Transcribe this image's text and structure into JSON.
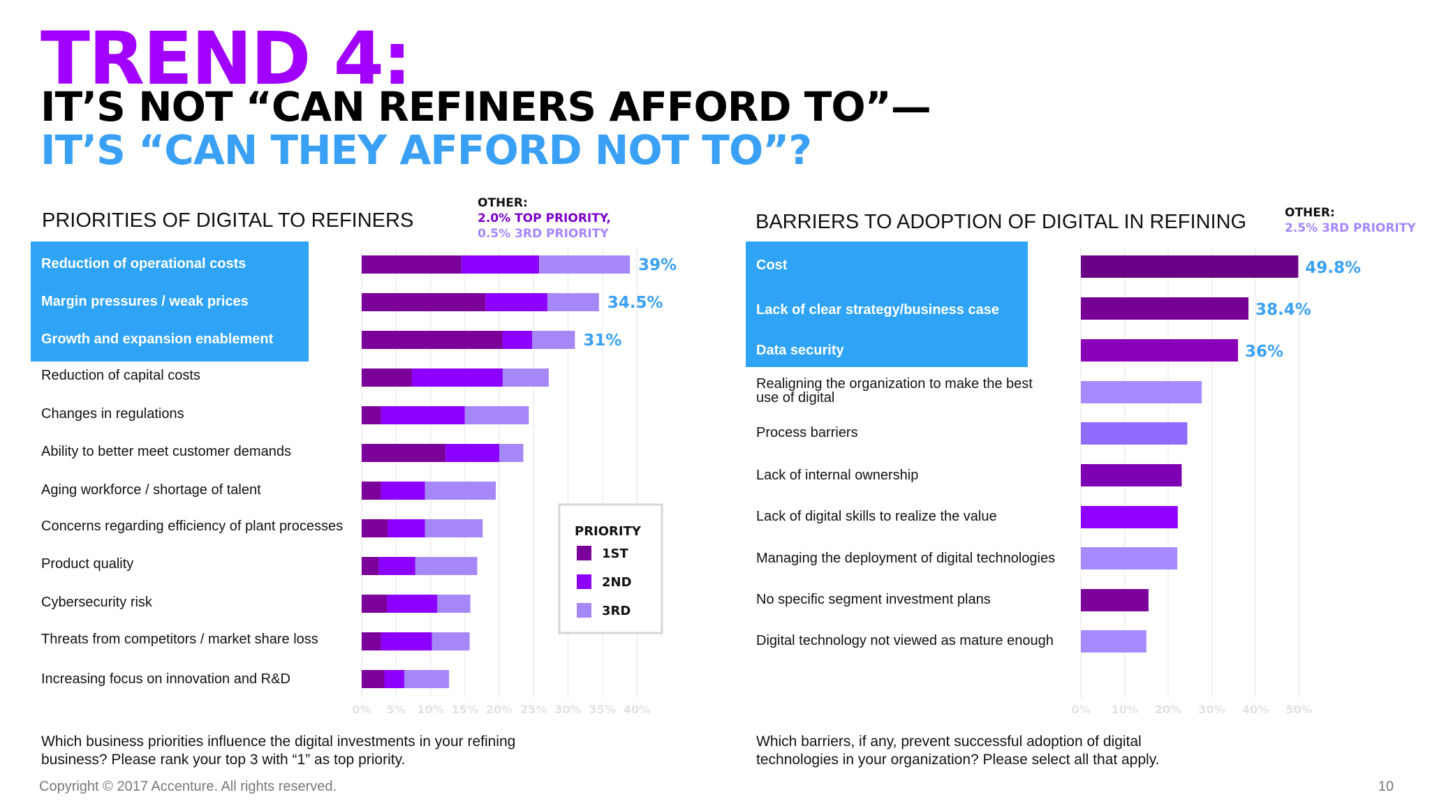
{
  "header": {
    "trend": "TREND 4:",
    "line2": "IT’S NOT “CAN REFINERS AFFORD TO”—",
    "line3": "IT’S “CAN THEY AFFORD NOT TO”?"
  },
  "colors": {
    "first": "#7a0099",
    "second": "#8c00ff",
    "third": "#a687f7",
    "highlight": "#2fa4f7",
    "value_text": "#3aa0f5"
  },
  "priorities": {
    "title": "PRIORITIES OF DIGITAL TO REFINERS",
    "other_label": "OTHER:",
    "other_top": "2.0% TOP PRIORITY,",
    "other_third": "0.5% 3RD PRIORITY",
    "question": "Which business priorities influence the digital investments in your refining business? Please rank your top 3 with “1” as top priority.",
    "legend": {
      "title": "PRIORITY",
      "items": [
        "1ST",
        "2ND",
        "3RD"
      ]
    }
  },
  "barriers": {
    "title": "BARRIERS TO ADOPTION OF DIGITAL IN REFINING",
    "other_label": "OTHER:",
    "other_third": "2.5% 3RD PRIORITY",
    "question": "Which barriers, if any, prevent successful adoption of digital technologies in your organization? Please select all that apply."
  },
  "chart_data": [
    {
      "type": "bar",
      "orientation": "horizontal",
      "stacked": true,
      "title": "PRIORITIES OF DIGITAL TO REFINERS",
      "categories": [
        "Reduction of operational costs",
        "Margin pressures / weak prices",
        "Growth and expansion enablement",
        "Reduction of capital costs",
        "Changes in regulations",
        "Ability to better meet customer demands",
        "Aging workforce / shortage of talent",
        "Concerns regarding efficiency of plant processes",
        "Product quality",
        "Cybersecurity risk",
        "Threats from competitors / market share loss",
        "Increasing focus on innovation and R&D"
      ],
      "highlighted_count": 3,
      "series": [
        {
          "name": "1ST",
          "values": [
            14.5,
            18,
            20.5,
            7.3,
            2.8,
            12.2,
            2.8,
            3.8,
            2.5,
            3.7,
            2.8,
            3.3
          ]
        },
        {
          "name": "2ND",
          "values": [
            11.3,
            9,
            4.3,
            13.2,
            12.2,
            7.8,
            6.4,
            5.4,
            5.3,
            7.3,
            7.4,
            2.9
          ]
        },
        {
          "name": "3RD",
          "values": [
            13.2,
            7.5,
            6.2,
            6.7,
            9.3,
            3.5,
            10.3,
            8.4,
            9,
            4.8,
            5.5,
            6.5
          ]
        }
      ],
      "data_labels": [
        "39%",
        "34.5%",
        "31%",
        "",
        "",
        "",
        "",
        "",
        "",
        "",
        "",
        ""
      ],
      "xticks": [
        "0%",
        "5%",
        "10%",
        "15%",
        "20%",
        "25%",
        "30%",
        "35%",
        "40%"
      ],
      "xlim": [
        0,
        40
      ],
      "grid": true,
      "legend_position": "right"
    },
    {
      "type": "bar",
      "orientation": "horizontal",
      "stacked": false,
      "title": "BARRIERS TO ADOPTION OF DIGITAL IN REFINING",
      "categories": [
        "Cost",
        "Lack of clear strategy/business case",
        "Data security",
        "Realigning the organization to make the best use of digital",
        "Process barriers",
        "Lack of internal ownership",
        "Lack of digital skills to realize the value",
        "Managing the deployment of digital technologies",
        "No specific segment investment plans",
        "Digital technology not viewed as mature enough"
      ],
      "highlighted_count": 3,
      "values": [
        49.8,
        38.4,
        36,
        27.7,
        24.4,
        23.1,
        22.2,
        22.1,
        15.5,
        15
      ],
      "bar_colors": [
        "#6a0085",
        "#760094",
        "#8a00b8",
        "#a58bff",
        "#8f6cff",
        "#7d00b2",
        "#8f00ff",
        "#a58bff",
        "#7a0099",
        "#a58bff"
      ],
      "data_labels": [
        "49.8%",
        "38.4%",
        "36%",
        "",
        "",
        "",
        "",
        "",
        "",
        ""
      ],
      "xticks": [
        "0%",
        "10%",
        "20%",
        "30%",
        "40%",
        "50%"
      ],
      "xlim": [
        0,
        50
      ],
      "grid": true
    }
  ],
  "footer": {
    "copyright": "Copyright © 2017 Accenture. All rights reserved.",
    "page": "10"
  }
}
